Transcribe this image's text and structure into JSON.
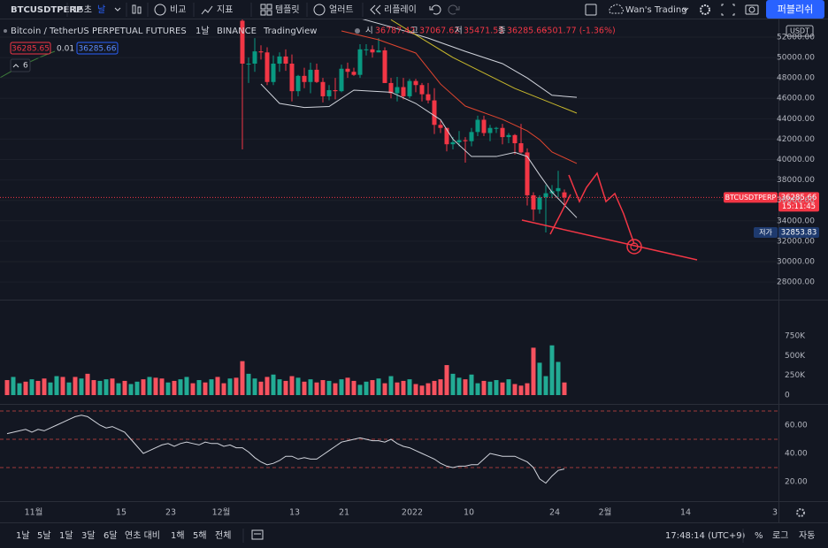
{
  "toolbar": {
    "symbol": "BTCUSDTPERP",
    "interval": "15초",
    "interval_unit": "날",
    "compare": "비교",
    "indicators": "지표",
    "templates": "템플릿",
    "alerts": "얼러트",
    "replay": "리플레이",
    "layout": "Wan's Trading",
    "publish": "퍼블리쉬"
  },
  "legend": {
    "title": "Bitcoin / TetherUS PERPETUAL FUTURES",
    "interval": "1날",
    "exchange": "BINANCE",
    "source": "TradingView",
    "open_label": "시",
    "high_label": "고",
    "low_label": "저",
    "close_label": "종",
    "change": "-501.77 (-1.36%)",
    "bid": "36285.65",
    "spread": "0.01",
    "indicator_count": "6"
  },
  "chart": {
    "currency": "USDT",
    "ylim": [
      26360,
      53730
    ],
    "yticks": [
      {
        "value": 52000,
        "label": "52000.00"
      },
      {
        "value": 50000,
        "label": "50000.00"
      },
      {
        "value": 48000,
        "label": "48000.00"
      },
      {
        "value": 46000,
        "label": "46000.00"
      },
      {
        "value": 44000,
        "label": "44000.00"
      },
      {
        "value": 42000,
        "label": "42000.00"
      },
      {
        "value": 40000,
        "label": "40000.00"
      },
      {
        "value": 38000,
        "label": "38000.00"
      },
      {
        "value": 36000,
        "label": "36000.00"
      },
      {
        "value": 34000,
        "label": "34000.00"
      },
      {
        "value": 32000,
        "label": "32000.00"
      },
      {
        "value": 30000,
        "label": "30000.00"
      },
      {
        "value": 28000,
        "label": "28000.00"
      }
    ],
    "up_color": "#089981",
    "down_color": "#f23645",
    "candles": [
      [
        53600,
        53900,
        41000,
        49400
      ],
      [
        49400,
        50000,
        47500,
        49400
      ],
      [
        49400,
        51900,
        48600,
        50600
      ],
      [
        50600,
        51200,
        49800,
        50500
      ],
      [
        50500,
        51000,
        47300,
        47600
      ],
      [
        47600,
        50200,
        47300,
        49400
      ],
      [
        49400,
        50500,
        48600,
        50100
      ],
      [
        50100,
        50800,
        48700,
        49400
      ],
      [
        49400,
        50300,
        45700,
        46700
      ],
      [
        46700,
        48300,
        46200,
        48200
      ],
      [
        48200,
        49000,
        47000,
        47600
      ],
      [
        47600,
        49500,
        46500,
        48800
      ],
      [
        48800,
        49400,
        47500,
        47600
      ],
      [
        47600,
        48000,
        45600,
        46200
      ],
      [
        46200,
        47300,
        45800,
        46800
      ],
      [
        46800,
        48000,
        45900,
        46700
      ],
      [
        46700,
        49300,
        46600,
        48900
      ],
      [
        48900,
        49500,
        48000,
        48600
      ],
      [
        48600,
        49000,
        48200,
        48300
      ],
      [
        48300,
        51300,
        48000,
        50800
      ],
      [
        50800,
        51300,
        50200,
        50800
      ],
      [
        50800,
        51200,
        50000,
        50500
      ],
      [
        50500,
        51900,
        50500,
        50700
      ],
      [
        50700,
        51000,
        47500,
        47500
      ],
      [
        47500,
        48000,
        46000,
        46500
      ],
      [
        46500,
        48100,
        45700,
        47100
      ],
      [
        47100,
        48000,
        45900,
        46200
      ],
      [
        46200,
        47900,
        46000,
        47700
      ],
      [
        47700,
        47900,
        46600,
        47300
      ],
      [
        47300,
        47500,
        45700,
        46400
      ],
      [
        46400,
        47500,
        45500,
        45800
      ],
      [
        45800,
        47000,
        42500,
        43400
      ],
      [
        43400,
        43800,
        42600,
        43100
      ],
      [
        43100,
        43100,
        40800,
        41500
      ],
      [
        41500,
        42200,
        41000,
        41700
      ],
      [
        41700,
        42800,
        41300,
        41900
      ],
      [
        41900,
        42200,
        39700,
        41800
      ],
      [
        41800,
        43100,
        41300,
        42700
      ],
      [
        42700,
        44300,
        42300,
        43900
      ],
      [
        43900,
        44300,
        42300,
        42600
      ],
      [
        42600,
        43400,
        41800,
        43100
      ],
      [
        43100,
        43200,
        42600,
        43100
      ],
      [
        43100,
        43500,
        41500,
        42200
      ],
      [
        42200,
        42600,
        41600,
        42400
      ],
      [
        42400,
        42500,
        40500,
        41600
      ],
      [
        41600,
        43500,
        40600,
        40700
      ],
      [
        40700,
        41100,
        35500,
        36500
      ],
      [
        36500,
        36800,
        34000,
        35100
      ],
      [
        35100,
        36500,
        34700,
        36300
      ],
      [
        36300,
        37500,
        32853.83,
        36700
      ],
      [
        36700,
        37500,
        36200,
        36900
      ],
      [
        36900,
        38900,
        36300,
        37200
      ],
      [
        36787.42,
        37067.62,
        35471.53,
        36285.66
      ]
    ],
    "lines": [
      {
        "color": "#d1d4dc",
        "x": [
          18,
          24,
          30,
          36,
          42,
          46,
          50,
          54
        ],
        "values": [
          54000,
          53000,
          51900,
          50600,
          49400,
          48000,
          46300,
          46100
        ]
      },
      {
        "color": "#d1d4dc",
        "x": [
          3,
          6,
          10,
          14,
          18,
          24,
          28,
          32,
          34,
          37,
          41,
          44,
          46,
          48,
          50,
          54
        ],
        "values": [
          47400,
          45500,
          45100,
          45200,
          46800,
          46600,
          45500,
          43900,
          42000,
          40300,
          40300,
          40700,
          40300,
          38500,
          36800,
          34300
        ]
      },
      {
        "color": "#e0452f",
        "x": [
          16,
          22,
          28,
          32,
          36,
          42,
          46,
          48,
          50,
          54
        ],
        "values": [
          52600,
          51740,
          50440,
          47400,
          45240,
          43940,
          42810,
          41950,
          40740,
          39620
        ]
      },
      {
        "color": "#c9b92c",
        "x": [
          24,
          34,
          44,
          54
        ],
        "values": [
          53700,
          50000,
          46970,
          44550
        ]
      }
    ],
    "last_price_label": "BTCUSDTPERP",
    "countdown": "15:11:45",
    "low_tag": "저가",
    "volume": {
      "ylim": [
        0,
        750000
      ],
      "yticks": [
        {
          "value": 750000,
          "label": "750K"
        },
        {
          "value": 500000,
          "label": "500K"
        },
        {
          "value": 250000,
          "label": "250K"
        },
        0
      ],
      "values": [
        190000,
        230000,
        150000,
        170000,
        200000,
        180000,
        210000,
        160000,
        240000,
        230000,
        160000,
        230000,
        210000,
        270000,
        190000,
        180000,
        200000,
        210000,
        150000,
        180000,
        140000,
        170000,
        200000,
        230000,
        220000,
        210000,
        160000,
        180000,
        200000,
        230000,
        150000,
        190000,
        160000,
        200000,
        230000,
        150000,
        210000,
        220000,
        430000,
        270000,
        210000,
        170000,
        230000,
        260000,
        200000,
        180000,
        240000,
        220000,
        170000,
        200000,
        160000,
        190000,
        180000,
        150000,
        200000,
        220000,
        180000,
        130000,
        170000,
        190000,
        210000,
        150000,
        240000,
        160000,
        180000,
        200000,
        140000,
        120000,
        150000,
        180000,
        200000,
        380000,
        270000,
        220000,
        200000,
        260000,
        150000,
        180000,
        170000,
        190000,
        160000,
        200000,
        140000,
        120000,
        150000,
        600000,
        410000,
        240000,
        630000,
        420000,
        160000
      ],
      "colors": [
        "#f7525f",
        "#22ab94",
        "#22ab94",
        "#f7525f",
        "#22ab94",
        "#f7525f",
        "#f7525f",
        "#22ab94",
        "#22ab94",
        "#f7525f",
        "#22ab94",
        "#f7525f",
        "#22ab94",
        "#f7525f",
        "#f7525f",
        "#22ab94",
        "#22ab94",
        "#f7525f",
        "#22ab94",
        "#f7525f",
        "#22ab94",
        "#22ab94",
        "#f7525f",
        "#22ab94",
        "#f7525f",
        "#f7525f",
        "#22ab94",
        "#f7525f",
        "#22ab94",
        "#22ab94",
        "#f7525f",
        "#22ab94",
        "#f7525f",
        "#22ab94",
        "#f7525f",
        "#f7525f",
        "#22ab94",
        "#f7525f",
        "#f7525f",
        "#22ab94",
        "#22ab94",
        "#f7525f",
        "#f7525f",
        "#22ab94",
        "#22ab94",
        "#f7525f",
        "#f7525f",
        "#22ab94",
        "#f7525f",
        "#22ab94",
        "#f7525f",
        "#f7525f",
        "#22ab94",
        "#f7525f",
        "#22ab94",
        "#f7525f",
        "#f7525f",
        "#22ab94",
        "#22ab94",
        "#f7525f",
        "#22ab94",
        "#f7525f",
        "#22ab94",
        "#f7525f",
        "#f7525f",
        "#22ab94",
        "#f7525f",
        "#f7525f",
        "#f7525f",
        "#f7525f",
        "#f7525f",
        "#f7525f",
        "#22ab94",
        "#22ab94",
        "#f7525f",
        "#22ab94",
        "#22ab94",
        "#f7525f",
        "#22ab94",
        "#22ab94",
        "#f7525f",
        "#22ab94",
        "#f7525f",
        "#f7525f",
        "#f7525f",
        "#f7525f",
        "#22ab94",
        "#22ab94",
        "#22ab94",
        "#22ab94",
        "#f7525f"
      ]
    },
    "rsi": {
      "ylim": [
        5.625,
        74.375
      ],
      "yticks": [
        {
          "value": 60,
          "label": "60.00"
        },
        {
          "value": 40,
          "label": "40.00"
        },
        {
          "value": 20,
          "label": "20.00"
        }
      ],
      "bands": [
        70,
        50,
        30
      ],
      "color": "#d1d4dc",
      "values": [
        54,
        55,
        56,
        57,
        55,
        57,
        56,
        58,
        60,
        62,
        64,
        66,
        67,
        66,
        63,
        60,
        58,
        59,
        57,
        55,
        50,
        45,
        40,
        42,
        44,
        46,
        47,
        45,
        47,
        48,
        47,
        46,
        48,
        47,
        47,
        45,
        46,
        44,
        44,
        41,
        37,
        34,
        32,
        33,
        35,
        38,
        38,
        36,
        37,
        36,
        36,
        39,
        42,
        45,
        48,
        49,
        50,
        51,
        50,
        49,
        49,
        48,
        50,
        47,
        45,
        44,
        42,
        40,
        38,
        36,
        33,
        31,
        30,
        31,
        31,
        32,
        32,
        36,
        40,
        39,
        38,
        38,
        38,
        36,
        34,
        30,
        22,
        19,
        24,
        28,
        29
      ]
    },
    "time_labels": [
      "11월",
      "15",
      "23",
      "12월",
      "13",
      "21",
      "2022",
      "10",
      "24",
      "2월",
      "14",
      "3"
    ]
  },
  "bottom": {
    "ranges": [
      "1날",
      "5날",
      "1달",
      "3달",
      "6달",
      "연초 대비",
      "1해",
      "5해",
      "전체"
    ],
    "clock": "17:48:14 (UTC+9)",
    "percent": "%",
    "log": "로그",
    "auto": "자동"
  }
}
